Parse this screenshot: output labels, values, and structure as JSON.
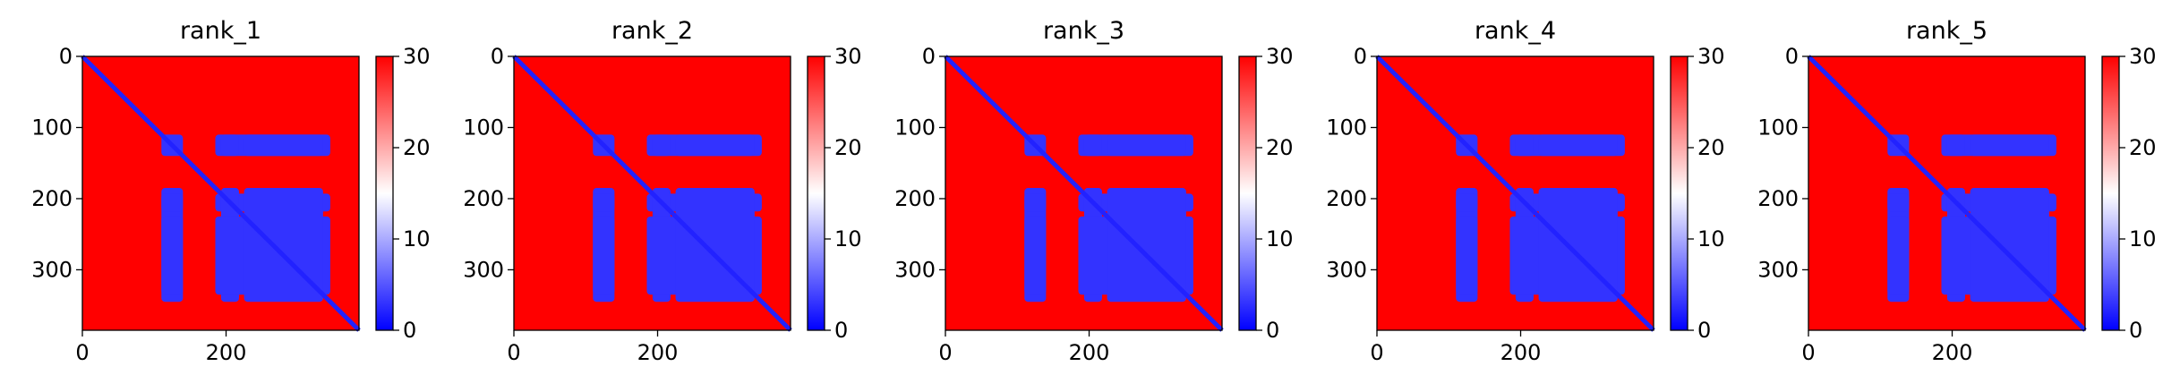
{
  "chart_data": [
    {
      "type": "heatmap",
      "title": "rank_1",
      "xlim": [
        0,
        385
      ],
      "ylim": [
        385,
        0
      ],
      "x_ticks": [
        0,
        200
      ],
      "y_ticks": [
        0,
        100,
        200,
        300
      ],
      "colorbar": {
        "range": [
          0,
          30
        ],
        "ticks": [
          0,
          10,
          20,
          30
        ],
        "colormap": "bwr"
      },
      "grid": false,
      "blocks": [
        {
          "x": [
            110,
            140
          ],
          "y": [
            110,
            140
          ],
          "value": 3
        },
        {
          "x": [
            185,
            345
          ],
          "y": [
            110,
            140
          ],
          "value": 3
        },
        {
          "x": [
            110,
            140
          ],
          "y": [
            185,
            345
          ],
          "value": 3
        },
        {
          "x": [
            110,
            140
          ],
          "y": [
            193,
            218
          ],
          "value": 3
        },
        {
          "x": [
            193,
            218
          ],
          "y": [
            110,
            140
          ],
          "value": 3
        },
        {
          "x": [
            185,
            345
          ],
          "y": [
            193,
            218
          ],
          "value": 3
        },
        {
          "x": [
            193,
            218
          ],
          "y": [
            185,
            345
          ],
          "value": 3
        },
        {
          "x": [
            110,
            140
          ],
          "y": [
            225,
            335
          ],
          "value": 3
        },
        {
          "x": [
            225,
            335
          ],
          "y": [
            110,
            140
          ],
          "value": 3
        },
        {
          "x": [
            185,
            345
          ],
          "y": [
            225,
            335
          ],
          "value": 3
        },
        {
          "x": [
            225,
            335
          ],
          "y": [
            185,
            345
          ],
          "value": 3
        }
      ],
      "diagonal_value": 2,
      "background_value": 30
    },
    {
      "type": "heatmap",
      "title": "rank_2",
      "xlim": [
        0,
        385
      ],
      "ylim": [
        385,
        0
      ],
      "x_ticks": [
        0,
        200
      ],
      "y_ticks": [
        0,
        100,
        200,
        300
      ],
      "colorbar": {
        "range": [
          0,
          30
        ],
        "ticks": [
          0,
          10,
          20,
          30
        ],
        "colormap": "bwr"
      },
      "grid": false,
      "blocks": [
        {
          "x": [
            110,
            140
          ],
          "y": [
            110,
            140
          ],
          "value": 3
        },
        {
          "x": [
            185,
            345
          ],
          "y": [
            110,
            140
          ],
          "value": 3
        },
        {
          "x": [
            110,
            140
          ],
          "y": [
            185,
            345
          ],
          "value": 3
        },
        {
          "x": [
            110,
            140
          ],
          "y": [
            193,
            218
          ],
          "value": 3
        },
        {
          "x": [
            193,
            218
          ],
          "y": [
            110,
            140
          ],
          "value": 3
        },
        {
          "x": [
            185,
            345
          ],
          "y": [
            193,
            218
          ],
          "value": 3
        },
        {
          "x": [
            193,
            218
          ],
          "y": [
            185,
            345
          ],
          "value": 3
        },
        {
          "x": [
            110,
            140
          ],
          "y": [
            225,
            335
          ],
          "value": 3
        },
        {
          "x": [
            225,
            335
          ],
          "y": [
            110,
            140
          ],
          "value": 3
        },
        {
          "x": [
            185,
            345
          ],
          "y": [
            225,
            335
          ],
          "value": 3
        },
        {
          "x": [
            225,
            335
          ],
          "y": [
            185,
            345
          ],
          "value": 3
        }
      ],
      "diagonal_value": 2,
      "background_value": 30
    },
    {
      "type": "heatmap",
      "title": "rank_3",
      "xlim": [
        0,
        385
      ],
      "ylim": [
        385,
        0
      ],
      "x_ticks": [
        0,
        200
      ],
      "y_ticks": [
        0,
        100,
        200,
        300
      ],
      "colorbar": {
        "range": [
          0,
          30
        ],
        "ticks": [
          0,
          10,
          20,
          30
        ],
        "colormap": "bwr"
      },
      "grid": false,
      "blocks": [
        {
          "x": [
            110,
            140
          ],
          "y": [
            110,
            140
          ],
          "value": 3
        },
        {
          "x": [
            185,
            345
          ],
          "y": [
            110,
            140
          ],
          "value": 3
        },
        {
          "x": [
            110,
            140
          ],
          "y": [
            185,
            345
          ],
          "value": 3
        },
        {
          "x": [
            110,
            140
          ],
          "y": [
            193,
            218
          ],
          "value": 3
        },
        {
          "x": [
            193,
            218
          ],
          "y": [
            110,
            140
          ],
          "value": 3
        },
        {
          "x": [
            185,
            345
          ],
          "y": [
            193,
            218
          ],
          "value": 3
        },
        {
          "x": [
            193,
            218
          ],
          "y": [
            185,
            345
          ],
          "value": 3
        },
        {
          "x": [
            110,
            140
          ],
          "y": [
            225,
            335
          ],
          "value": 3
        },
        {
          "x": [
            225,
            335
          ],
          "y": [
            110,
            140
          ],
          "value": 3
        },
        {
          "x": [
            185,
            345
          ],
          "y": [
            225,
            335
          ],
          "value": 3
        },
        {
          "x": [
            225,
            335
          ],
          "y": [
            185,
            345
          ],
          "value": 3
        }
      ],
      "diagonal_value": 2,
      "background_value": 30
    },
    {
      "type": "heatmap",
      "title": "rank_4",
      "xlim": [
        0,
        385
      ],
      "ylim": [
        385,
        0
      ],
      "x_ticks": [
        0,
        200
      ],
      "y_ticks": [
        0,
        100,
        200,
        300
      ],
      "colorbar": {
        "range": [
          0,
          30
        ],
        "ticks": [
          0,
          10,
          20,
          30
        ],
        "colormap": "bwr"
      },
      "grid": false,
      "blocks": [
        {
          "x": [
            110,
            140
          ],
          "y": [
            110,
            140
          ],
          "value": 3
        },
        {
          "x": [
            185,
            345
          ],
          "y": [
            110,
            140
          ],
          "value": 3
        },
        {
          "x": [
            110,
            140
          ],
          "y": [
            185,
            345
          ],
          "value": 3
        },
        {
          "x": [
            110,
            140
          ],
          "y": [
            193,
            218
          ],
          "value": 3
        },
        {
          "x": [
            193,
            218
          ],
          "y": [
            110,
            140
          ],
          "value": 3
        },
        {
          "x": [
            185,
            345
          ],
          "y": [
            193,
            218
          ],
          "value": 3
        },
        {
          "x": [
            193,
            218
          ],
          "y": [
            185,
            345
          ],
          "value": 3
        },
        {
          "x": [
            110,
            140
          ],
          "y": [
            225,
            335
          ],
          "value": 3
        },
        {
          "x": [
            225,
            335
          ],
          "y": [
            110,
            140
          ],
          "value": 3
        },
        {
          "x": [
            185,
            345
          ],
          "y": [
            225,
            335
          ],
          "value": 3
        },
        {
          "x": [
            225,
            335
          ],
          "y": [
            185,
            345
          ],
          "value": 3
        }
      ],
      "diagonal_value": 2,
      "background_value": 30
    },
    {
      "type": "heatmap",
      "title": "rank_5",
      "xlim": [
        0,
        385
      ],
      "ylim": [
        385,
        0
      ],
      "x_ticks": [
        0,
        200
      ],
      "y_ticks": [
        0,
        100,
        200,
        300
      ],
      "colorbar": {
        "range": [
          0,
          30
        ],
        "ticks": [
          0,
          10,
          20,
          30
        ],
        "colormap": "bwr"
      },
      "grid": false,
      "blocks": [
        {
          "x": [
            110,
            140
          ],
          "y": [
            110,
            140
          ],
          "value": 3
        },
        {
          "x": [
            185,
            345
          ],
          "y": [
            110,
            140
          ],
          "value": 3
        },
        {
          "x": [
            110,
            140
          ],
          "y": [
            185,
            345
          ],
          "value": 3
        },
        {
          "x": [
            110,
            140
          ],
          "y": [
            193,
            218
          ],
          "value": 3
        },
        {
          "x": [
            193,
            218
          ],
          "y": [
            110,
            140
          ],
          "value": 3
        },
        {
          "x": [
            185,
            345
          ],
          "y": [
            193,
            218
          ],
          "value": 3
        },
        {
          "x": [
            193,
            218
          ],
          "y": [
            185,
            345
          ],
          "value": 3
        },
        {
          "x": [
            110,
            140
          ],
          "y": [
            225,
            335
          ],
          "value": 3
        },
        {
          "x": [
            225,
            335
          ],
          "y": [
            110,
            140
          ],
          "value": 3
        },
        {
          "x": [
            185,
            345
          ],
          "y": [
            225,
            335
          ],
          "value": 3
        },
        {
          "x": [
            225,
            335
          ],
          "y": [
            185,
            345
          ],
          "value": 3
        }
      ],
      "diagonal_value": 2,
      "background_value": 30
    }
  ]
}
